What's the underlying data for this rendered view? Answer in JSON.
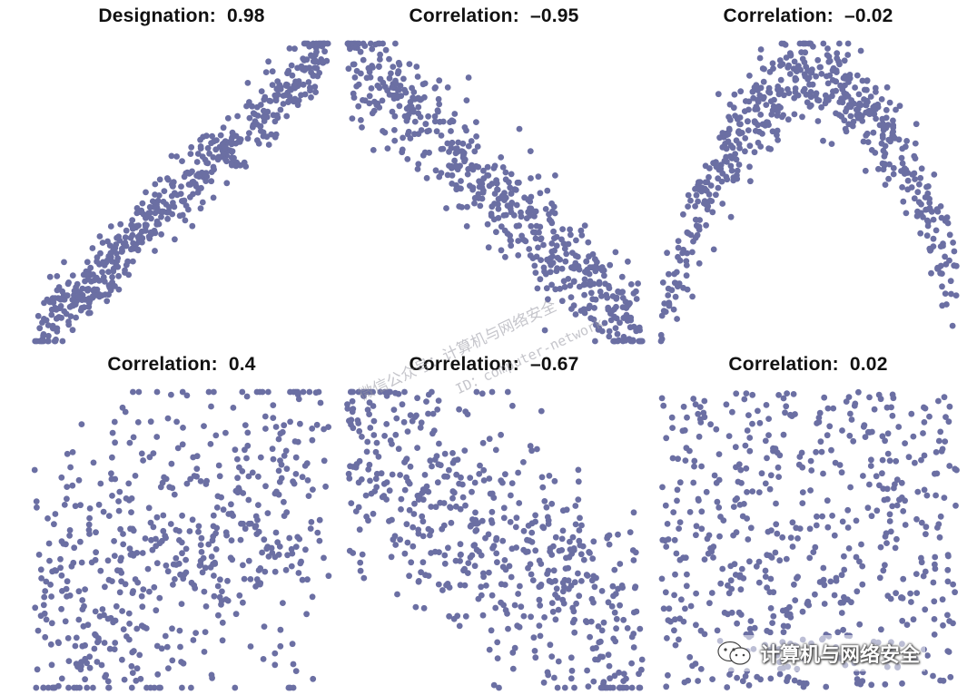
{
  "chart_data": [
    {
      "type": "scatter",
      "title": "Designation:  0.98",
      "pattern": "linear",
      "correlation": 0.98,
      "xlim": [
        0,
        1
      ],
      "ylim": [
        0,
        1
      ],
      "color": "#6B6FA3"
    },
    {
      "type": "scatter",
      "title": "Correlation:  –0.95",
      "pattern": "linear",
      "correlation": -0.95,
      "xlim": [
        0,
        1
      ],
      "ylim": [
        0,
        1
      ],
      "color": "#6B6FA3"
    },
    {
      "type": "scatter",
      "title": "Correlation:  –0.02",
      "pattern": "arch",
      "correlation": -0.02,
      "xlim": [
        0,
        1
      ],
      "ylim": [
        0,
        1
      ],
      "color": "#6B6FA3"
    },
    {
      "type": "scatter",
      "title": "Correlation:  0.4",
      "pattern": "linear",
      "correlation": 0.4,
      "xlim": [
        0,
        1
      ],
      "ylim": [
        0,
        1
      ],
      "color": "#6B6FA3"
    },
    {
      "type": "scatter",
      "title": "Correlation:  –0.67",
      "pattern": "linear",
      "correlation": -0.67,
      "xlim": [
        0,
        1
      ],
      "ylim": [
        0,
        1
      ],
      "color": "#6B6FA3"
    },
    {
      "type": "scatter",
      "title": "Correlation:  0.02",
      "pattern": "uniform",
      "correlation": 0.02,
      "xlim": [
        0,
        1
      ],
      "ylim": [
        0,
        1
      ],
      "color": "#6B6FA3"
    }
  ],
  "watermark": {
    "line1": "微信公众号：计算机与网络安全",
    "line2": "ID：computer-network"
  },
  "brand": {
    "icon": "wechat-icon",
    "text": "计算机与网络安全"
  }
}
